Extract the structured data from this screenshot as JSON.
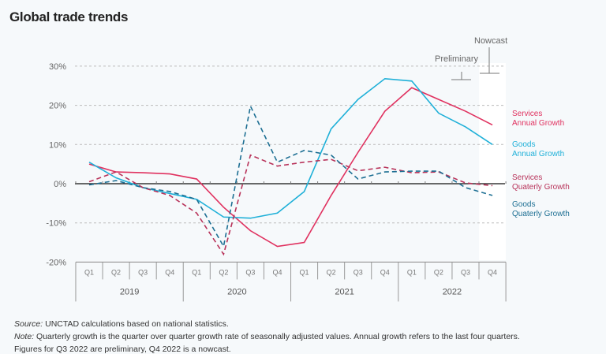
{
  "title": "Global trade trends",
  "chart_data": {
    "type": "line",
    "title": "Global trade trends",
    "ylim": [
      -20,
      30
    ],
    "yticks": [
      "-20%",
      "-10%",
      "0%",
      "10%",
      "20%",
      "30%"
    ],
    "grid": true,
    "quarters": [
      "Q1",
      "Q2",
      "Q3",
      "Q4",
      "Q1",
      "Q2",
      "Q3",
      "Q4",
      "Q1",
      "Q2",
      "Q3",
      "Q4",
      "Q1",
      "Q2",
      "Q3",
      "Q4"
    ],
    "years": [
      "2019",
      "2020",
      "2021",
      "2022"
    ],
    "annotations": {
      "preliminary": "Preliminary",
      "nowcast": "Nowcast"
    },
    "legend_placement": "right (inline labels)",
    "series": [
      {
        "name": "Services Annual Growth",
        "label_lines": [
          "Services",
          "Annual Growth"
        ],
        "color": "#e0315f",
        "dash": false,
        "values": [
          5,
          3,
          2.8,
          2.5,
          1.2,
          -6,
          -12,
          -16,
          -15,
          -3,
          8,
          18.5,
          24.5,
          21.5,
          18.5,
          15
        ]
      },
      {
        "name": "Goods Annual Growth",
        "label_lines": [
          "Goods",
          "Annual Growth"
        ],
        "color": "#1fb0d8",
        "dash": false,
        "values": [
          5.5,
          1.5,
          -1,
          -2.5,
          -4,
          -8.5,
          -8.8,
          -7.5,
          -2,
          14,
          21.5,
          26.8,
          26.2,
          18,
          14.5,
          10
        ]
      },
      {
        "name": "Services Quaterly Growth",
        "label_lines": [
          "Services",
          "Quaterly Growth"
        ],
        "color": "#b8335a",
        "dash": true,
        "values": [
          0.5,
          3,
          -1,
          -3,
          -7.5,
          -18,
          7.3,
          4.5,
          5.5,
          6.2,
          3.3,
          4.2,
          2.8,
          3,
          0.2,
          -0.5
        ]
      },
      {
        "name": "Goods Quaterly Growth",
        "label_lines": [
          "Goods",
          "Quaterly Growth"
        ],
        "color": "#1d6f93",
        "dash": true,
        "values": [
          -0.3,
          0.8,
          -1,
          -2,
          -4,
          -16,
          19.8,
          5.5,
          8.5,
          7.3,
          1.2,
          3,
          3.2,
          3.2,
          -1,
          -3
        ]
      }
    ]
  },
  "footer": {
    "source_label": "Source:",
    "source_text": " UNCTAD calculations based on national statistics.",
    "note_label": "Note:",
    "note_text": " Quarterly growth is the quarter over quarter growth rate of seasonally adjusted values. Annual growth refers to the last four quarters.",
    "figures_text": "Figures for Q3 2022 are preliminary, Q4 2022 is a nowcast."
  }
}
